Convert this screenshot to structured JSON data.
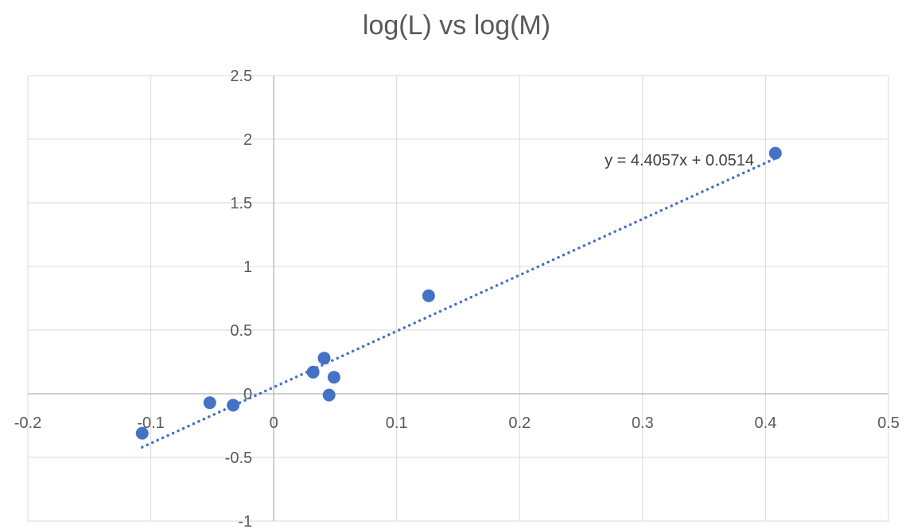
{
  "chart_data": {
    "type": "scatter",
    "title": "log(L) vs log(M)",
    "xlabel": "",
    "ylabel": "",
    "xlim": [
      -0.2,
      0.5
    ],
    "ylim": [
      -1,
      2.5
    ],
    "x_ticks": [
      "-0.2",
      "-0.1",
      "0",
      "0.1",
      "0.2",
      "0.3",
      "0.4",
      "0.5"
    ],
    "y_ticks": [
      "-1",
      "-0.5",
      "0",
      "0.5",
      "1",
      "1.5",
      "2",
      "2.5"
    ],
    "grid": true,
    "legend": "none",
    "series": [
      {
        "color": "#4472c4",
        "points": [
          {
            "x": -0.107,
            "y": -0.31
          },
          {
            "x": -0.052,
            "y": -0.07
          },
          {
            "x": -0.033,
            "y": -0.09
          },
          {
            "x": 0.032,
            "y": 0.17
          },
          {
            "x": 0.041,
            "y": 0.28
          },
          {
            "x": 0.045,
            "y": -0.01
          },
          {
            "x": 0.049,
            "y": 0.13
          },
          {
            "x": 0.126,
            "y": 0.77
          },
          {
            "x": 0.408,
            "y": 1.89
          }
        ]
      }
    ],
    "trendline": {
      "type": "linear",
      "style": "dotted",
      "slope": 4.4057,
      "intercept": 0.0514,
      "x_range": [
        -0.107,
        0.408
      ],
      "equation": "y = 4.4057x + 0.0514"
    }
  }
}
